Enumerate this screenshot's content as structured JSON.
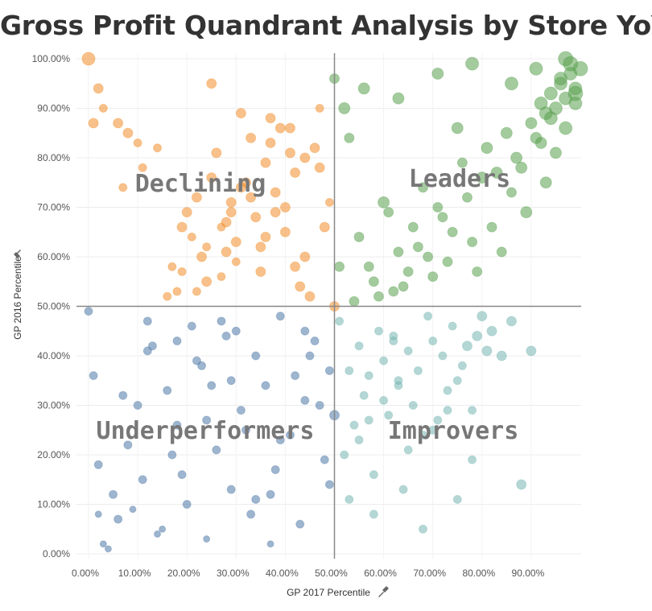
{
  "title": "Gross Profit Quandrant Analysis by Store YoY",
  "chart_data": {
    "type": "scatter",
    "title": "Gross Profit Quandrant Analysis by Store YoY",
    "xlabel": "GP 2017 Percentile",
    "ylabel": "GP 2016 Percentile",
    "xlim": [
      -0.02,
      1.0
    ],
    "ylim": [
      -0.01,
      1.01
    ],
    "x_ticks": [
      "0.00%",
      "10.00%",
      "20.00%",
      "30.00%",
      "40.00%",
      "50.00%",
      "60.00%",
      "70.00%",
      "80.00%",
      "90.00%"
    ],
    "y_ticks": [
      "0.00%",
      "10.00%",
      "20.00%",
      "30.00%",
      "40.00%",
      "50.00%",
      "60.00%",
      "70.00%",
      "80.00%",
      "90.00%",
      "100.00%"
    ],
    "reference_lines": {
      "x": 0.5,
      "y": 0.5
    },
    "quadrant_labels": {
      "declining": "Declining",
      "leaders": "Leaders",
      "underperformers": "Underperformers",
      "improvers": "Improvers"
    },
    "colors": {
      "declining": "#f28e2b",
      "leaders": "#59a14f",
      "underperformers": "#4e79a7",
      "improvers": "#76b7b2"
    },
    "series": [
      {
        "quadrant": "declining",
        "x": [
          0.0,
          0.01,
          0.02,
          0.03,
          0.06,
          0.07,
          0.08,
          0.1,
          0.11,
          0.14,
          0.17,
          0.18,
          0.19,
          0.2,
          0.21,
          0.22,
          0.23,
          0.24,
          0.25,
          0.26,
          0.27,
          0.28,
          0.29,
          0.3,
          0.31,
          0.32,
          0.33,
          0.34,
          0.35,
          0.36,
          0.37,
          0.38,
          0.39,
          0.4,
          0.41,
          0.42,
          0.43,
          0.44,
          0.45,
          0.46,
          0.47,
          0.48,
          0.49,
          0.5,
          0.25,
          0.3,
          0.35,
          0.4,
          0.22,
          0.28,
          0.33,
          0.38,
          0.44,
          0.27,
          0.36,
          0.42,
          0.47,
          0.31,
          0.24,
          0.19,
          0.16,
          0.37,
          0.41,
          0.29
        ],
        "y": [
          1.0,
          0.87,
          0.94,
          0.9,
          0.87,
          0.74,
          0.85,
          0.83,
          0.78,
          0.82,
          0.58,
          0.53,
          0.66,
          0.69,
          0.64,
          0.72,
          0.6,
          0.55,
          0.76,
          0.81,
          0.56,
          0.67,
          0.71,
          0.63,
          0.89,
          0.75,
          0.84,
          0.68,
          0.62,
          0.79,
          0.88,
          0.73,
          0.86,
          0.65,
          0.81,
          0.77,
          0.54,
          0.6,
          0.52,
          0.82,
          0.9,
          0.66,
          0.71,
          0.5,
          0.95,
          0.59,
          0.57,
          0.7,
          0.53,
          0.61,
          0.72,
          0.69,
          0.8,
          0.66,
          0.64,
          0.58,
          0.78,
          0.74,
          0.62,
          0.57,
          0.52,
          0.83,
          0.86,
          0.69
        ],
        "sizes": [
          8,
          6,
          6,
          5,
          6,
          5,
          6,
          5,
          5,
          5,
          5,
          5,
          6,
          6,
          5,
          6,
          6,
          6,
          6,
          6,
          5,
          6,
          6,
          6,
          6,
          6,
          6,
          6,
          6,
          6,
          6,
          6,
          6,
          6,
          6,
          6,
          6,
          6,
          6,
          6,
          5,
          6,
          5,
          6,
          6,
          5,
          6,
          6,
          5,
          6,
          6,
          6,
          6,
          5,
          6,
          6,
          6,
          6,
          5,
          5,
          5,
          6,
          6,
          6
        ]
      },
      {
        "quadrant": "leaders",
        "x": [
          0.5,
          0.52,
          0.53,
          0.55,
          0.57,
          0.58,
          0.6,
          0.61,
          0.62,
          0.63,
          0.65,
          0.66,
          0.67,
          0.68,
          0.7,
          0.71,
          0.72,
          0.73,
          0.75,
          0.76,
          0.77,
          0.78,
          0.8,
          0.81,
          0.82,
          0.83,
          0.85,
          0.86,
          0.87,
          0.88,
          0.9,
          0.91,
          0.92,
          0.93,
          0.94,
          0.95,
          0.96,
          0.97,
          0.98,
          0.99,
          1.0,
          0.98,
          0.96,
          0.94,
          0.92,
          0.99,
          0.97,
          0.95,
          0.93,
          0.89,
          0.84,
          0.79,
          0.74,
          0.69,
          0.64,
          0.59,
          0.54,
          0.51,
          0.56,
          0.63,
          0.71,
          0.78,
          0.86,
          0.91,
          0.97,
          0.99
        ],
        "y": [
          0.96,
          0.9,
          0.84,
          0.64,
          0.58,
          0.55,
          0.71,
          0.69,
          0.53,
          0.61,
          0.57,
          0.66,
          0.62,
          0.74,
          0.56,
          0.7,
          0.68,
          0.59,
          0.86,
          0.79,
          0.72,
          0.63,
          0.76,
          0.82,
          0.66,
          0.77,
          0.85,
          0.73,
          0.8,
          0.78,
          0.87,
          0.84,
          0.91,
          0.89,
          0.93,
          0.9,
          0.95,
          0.92,
          0.97,
          0.94,
          0.98,
          0.99,
          0.96,
          0.88,
          0.83,
          0.91,
          0.86,
          0.81,
          0.75,
          0.69,
          0.61,
          0.57,
          0.65,
          0.6,
          0.54,
          0.52,
          0.51,
          0.58,
          0.94,
          0.92,
          0.97,
          0.99,
          0.95,
          0.98,
          1.0,
          0.93
        ],
        "sizes": [
          6,
          7,
          6,
          6,
          6,
          6,
          7,
          6,
          6,
          6,
          6,
          6,
          6,
          6,
          6,
          6,
          6,
          6,
          7,
          6,
          6,
          6,
          7,
          7,
          6,
          7,
          7,
          6,
          7,
          7,
          7,
          7,
          8,
          8,
          8,
          8,
          8,
          8,
          8,
          8,
          9,
          9,
          8,
          8,
          7,
          8,
          8,
          7,
          7,
          7,
          6,
          6,
          6,
          6,
          6,
          6,
          6,
          6,
          7,
          7,
          7,
          8,
          8,
          8,
          9,
          9
        ]
      },
      {
        "quadrant": "underperformers",
        "x": [
          0.0,
          0.01,
          0.02,
          0.03,
          0.05,
          0.06,
          0.08,
          0.1,
          0.11,
          0.13,
          0.15,
          0.16,
          0.18,
          0.2,
          0.21,
          0.23,
          0.24,
          0.26,
          0.28,
          0.29,
          0.31,
          0.33,
          0.34,
          0.36,
          0.38,
          0.39,
          0.41,
          0.43,
          0.44,
          0.46,
          0.48,
          0.49,
          0.5,
          0.04,
          0.09,
          0.14,
          0.19,
          0.24,
          0.29,
          0.34,
          0.39,
          0.44,
          0.49,
          0.07,
          0.12,
          0.17,
          0.22,
          0.27,
          0.32,
          0.37,
          0.42,
          0.47,
          0.02,
          0.12,
          0.25,
          0.37,
          0.45,
          0.3,
          0.18
        ],
        "y": [
          0.49,
          0.36,
          0.18,
          0.02,
          0.12,
          0.07,
          0.22,
          0.3,
          0.15,
          0.42,
          0.05,
          0.33,
          0.26,
          0.1,
          0.46,
          0.38,
          0.03,
          0.21,
          0.44,
          0.13,
          0.29,
          0.08,
          0.4,
          0.34,
          0.17,
          0.48,
          0.24,
          0.06,
          0.31,
          0.43,
          0.19,
          0.37,
          0.28,
          0.01,
          0.09,
          0.04,
          0.16,
          0.27,
          0.35,
          0.11,
          0.23,
          0.45,
          0.14,
          0.32,
          0.41,
          0.2,
          0.39,
          0.47,
          0.25,
          0.02,
          0.36,
          0.3,
          0.08,
          0.47,
          0.34,
          0.12,
          0.4,
          0.45,
          0.43
        ],
        "sizes": [
          5,
          5,
          5,
          4,
          5,
          5,
          5,
          5,
          5,
          5,
          4,
          5,
          5,
          5,
          5,
          5,
          4,
          5,
          5,
          5,
          5,
          5,
          5,
          5,
          5,
          5,
          5,
          5,
          5,
          5,
          5,
          5,
          6,
          4,
          4,
          4,
          5,
          5,
          5,
          5,
          5,
          5,
          5,
          5,
          5,
          5,
          5,
          5,
          5,
          4,
          5,
          5,
          4,
          5,
          5,
          5,
          5,
          5,
          5
        ]
      },
      {
        "quadrant": "improvers",
        "x": [
          0.51,
          0.52,
          0.53,
          0.54,
          0.55,
          0.56,
          0.57,
          0.58,
          0.59,
          0.6,
          0.61,
          0.62,
          0.63,
          0.64,
          0.65,
          0.66,
          0.67,
          0.68,
          0.69,
          0.7,
          0.71,
          0.72,
          0.73,
          0.74,
          0.75,
          0.76,
          0.77,
          0.78,
          0.79,
          0.8,
          0.81,
          0.82,
          0.84,
          0.86,
          0.88,
          0.9,
          0.55,
          0.6,
          0.65,
          0.7,
          0.75,
          0.58,
          0.63,
          0.68,
          0.73,
          0.78,
          0.53,
          0.57,
          0.62
        ],
        "y": [
          0.47,
          0.2,
          0.11,
          0.26,
          0.42,
          0.32,
          0.36,
          0.16,
          0.45,
          0.39,
          0.28,
          0.44,
          0.34,
          0.13,
          0.41,
          0.3,
          0.37,
          0.05,
          0.48,
          0.43,
          0.27,
          0.4,
          0.33,
          0.46,
          0.35,
          0.38,
          0.42,
          0.29,
          0.44,
          0.48,
          0.41,
          0.45,
          0.4,
          0.47,
          0.14,
          0.41,
          0.23,
          0.31,
          0.21,
          0.25,
          0.11,
          0.08,
          0.35,
          0.24,
          0.29,
          0.19,
          0.37,
          0.27,
          0.43
        ],
        "sizes": [
          5,
          5,
          5,
          5,
          5,
          5,
          5,
          5,
          5,
          5,
          5,
          5,
          5,
          5,
          5,
          5,
          5,
          5,
          5,
          5,
          5,
          5,
          5,
          5,
          5,
          5,
          6,
          5,
          6,
          6,
          6,
          6,
          6,
          6,
          6,
          6,
          5,
          5,
          5,
          5,
          5,
          5,
          5,
          5,
          5,
          5,
          5,
          5,
          5
        ]
      }
    ]
  }
}
